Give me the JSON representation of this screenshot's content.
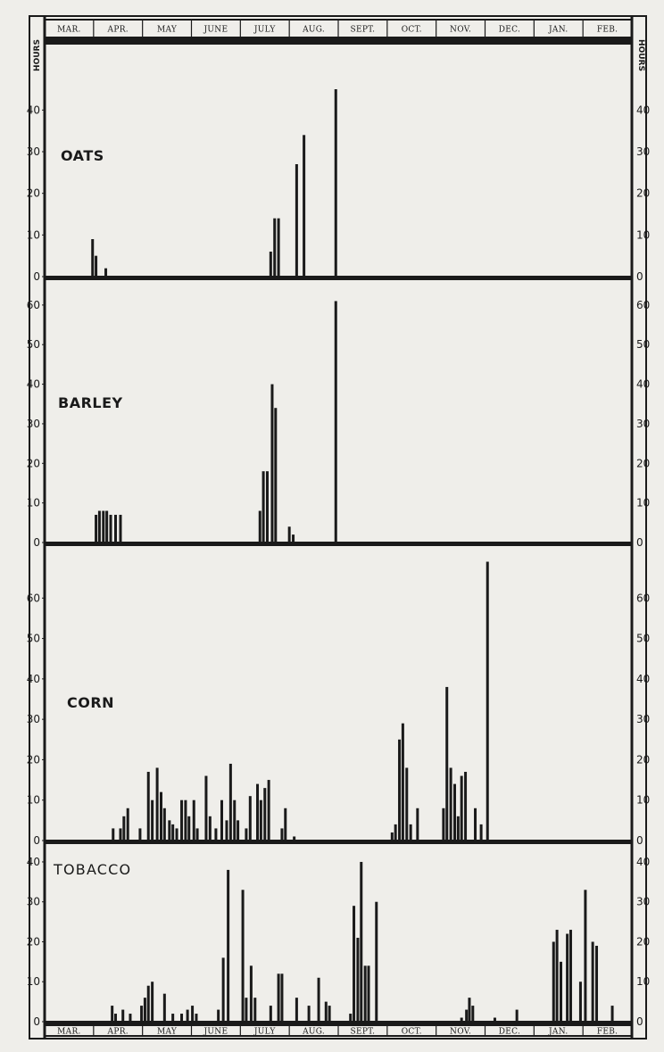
{
  "axis": {
    "y_title": "HOURS",
    "months": [
      "MAR.",
      "APR.",
      "MAY",
      "JUNE",
      "JULY",
      "AUG.",
      "SEPT.",
      "OCT.",
      "NOV.",
      "DEC.",
      "JAN.",
      "FEB."
    ]
  },
  "colors": {
    "ink": "#1a1a1a",
    "paper": "#efeeea"
  },
  "chart_data": [
    {
      "type": "bar",
      "title": "OATS",
      "ylim": [
        0,
        45
      ],
      "yticks": [
        0,
        10,
        20,
        30,
        40
      ],
      "x_unit": "months since start of March (0 = Mar 1, 12 = end of Feb)",
      "bars": [
        {
          "x": 0.98,
          "y": 9
        },
        {
          "x": 1.05,
          "y": 5
        },
        {
          "x": 1.25,
          "y": 2
        },
        {
          "x": 4.62,
          "y": 6
        },
        {
          "x": 4.7,
          "y": 14
        },
        {
          "x": 4.78,
          "y": 14
        },
        {
          "x": 5.15,
          "y": 27
        },
        {
          "x": 5.3,
          "y": 34
        },
        {
          "x": 5.95,
          "y": 45
        }
      ]
    },
    {
      "type": "bar",
      "title": "BARLEY",
      "ylim": [
        0,
        62
      ],
      "yticks": [
        0,
        10,
        20,
        30,
        40,
        50,
        60
      ],
      "x_unit": "months since start of March (0 = Mar 1, 12 = end of Feb)",
      "bars": [
        {
          "x": 1.05,
          "y": 7
        },
        {
          "x": 1.12,
          "y": 8
        },
        {
          "x": 1.2,
          "y": 8
        },
        {
          "x": 1.27,
          "y": 8
        },
        {
          "x": 1.35,
          "y": 7
        },
        {
          "x": 1.45,
          "y": 7
        },
        {
          "x": 1.55,
          "y": 7
        },
        {
          "x": 4.4,
          "y": 8
        },
        {
          "x": 4.47,
          "y": 18
        },
        {
          "x": 4.55,
          "y": 18
        },
        {
          "x": 4.65,
          "y": 40
        },
        {
          "x": 4.72,
          "y": 34
        },
        {
          "x": 5.0,
          "y": 4
        },
        {
          "x": 5.08,
          "y": 2
        },
        {
          "x": 5.95,
          "y": 61
        }
      ]
    },
    {
      "type": "bar",
      "title": "CORN",
      "ylim": [
        0,
        70
      ],
      "yticks": [
        0,
        10,
        20,
        30,
        40,
        50,
        60
      ],
      "x_unit": "months since start of March (0 = Mar 1, 12 = end of Feb)",
      "bars": [
        {
          "x": 1.4,
          "y": 3
        },
        {
          "x": 1.55,
          "y": 3
        },
        {
          "x": 1.62,
          "y": 6
        },
        {
          "x": 1.7,
          "y": 8
        },
        {
          "x": 1.95,
          "y": 3
        },
        {
          "x": 2.12,
          "y": 17
        },
        {
          "x": 2.2,
          "y": 10
        },
        {
          "x": 2.3,
          "y": 18
        },
        {
          "x": 2.38,
          "y": 12
        },
        {
          "x": 2.45,
          "y": 8
        },
        {
          "x": 2.55,
          "y": 5
        },
        {
          "x": 2.62,
          "y": 4
        },
        {
          "x": 2.7,
          "y": 3
        },
        {
          "x": 2.8,
          "y": 10
        },
        {
          "x": 2.88,
          "y": 10
        },
        {
          "x": 2.95,
          "y": 6
        },
        {
          "x": 3.05,
          "y": 10
        },
        {
          "x": 3.12,
          "y": 3
        },
        {
          "x": 3.3,
          "y": 16
        },
        {
          "x": 3.38,
          "y": 6
        },
        {
          "x": 3.5,
          "y": 3
        },
        {
          "x": 3.62,
          "y": 10
        },
        {
          "x": 3.72,
          "y": 5
        },
        {
          "x": 3.8,
          "y": 19
        },
        {
          "x": 3.88,
          "y": 10
        },
        {
          "x": 3.95,
          "y": 5
        },
        {
          "x": 4.12,
          "y": 3
        },
        {
          "x": 4.2,
          "y": 11
        },
        {
          "x": 4.35,
          "y": 14
        },
        {
          "x": 4.42,
          "y": 10
        },
        {
          "x": 4.5,
          "y": 13
        },
        {
          "x": 4.58,
          "y": 15
        },
        {
          "x": 4.85,
          "y": 3
        },
        {
          "x": 4.92,
          "y": 8
        },
        {
          "x": 5.1,
          "y": 1
        },
        {
          "x": 7.1,
          "y": 2
        },
        {
          "x": 7.17,
          "y": 4
        },
        {
          "x": 7.25,
          "y": 25
        },
        {
          "x": 7.32,
          "y": 29
        },
        {
          "x": 7.4,
          "y": 18
        },
        {
          "x": 7.48,
          "y": 4
        },
        {
          "x": 7.62,
          "y": 8
        },
        {
          "x": 8.15,
          "y": 8
        },
        {
          "x": 8.22,
          "y": 38
        },
        {
          "x": 8.3,
          "y": 18
        },
        {
          "x": 8.38,
          "y": 14
        },
        {
          "x": 8.45,
          "y": 6
        },
        {
          "x": 8.52,
          "y": 16
        },
        {
          "x": 8.6,
          "y": 17
        },
        {
          "x": 8.8,
          "y": 8
        },
        {
          "x": 8.92,
          "y": 4
        },
        {
          "x": 9.05,
          "y": 69
        }
      ]
    },
    {
      "type": "bar",
      "title": "TOBACCO",
      "ylim": [
        0,
        42
      ],
      "yticks": [
        0,
        10,
        20,
        30,
        40
      ],
      "x_unit": "months since start of March (0 = Mar 1, 12 = end of Feb)",
      "bars": [
        {
          "x": 1.38,
          "y": 4
        },
        {
          "x": 1.45,
          "y": 2
        },
        {
          "x": 1.6,
          "y": 3
        },
        {
          "x": 1.75,
          "y": 2
        },
        {
          "x": 1.98,
          "y": 4
        },
        {
          "x": 2.05,
          "y": 6
        },
        {
          "x": 2.12,
          "y": 9
        },
        {
          "x": 2.2,
          "y": 10
        },
        {
          "x": 2.45,
          "y": 7
        },
        {
          "x": 2.62,
          "y": 2
        },
        {
          "x": 2.8,
          "y": 2
        },
        {
          "x": 2.92,
          "y": 3
        },
        {
          "x": 3.02,
          "y": 4
        },
        {
          "x": 3.1,
          "y": 2
        },
        {
          "x": 3.55,
          "y": 3
        },
        {
          "x": 3.65,
          "y": 16
        },
        {
          "x": 3.75,
          "y": 38
        },
        {
          "x": 4.05,
          "y": 33
        },
        {
          "x": 4.12,
          "y": 6
        },
        {
          "x": 4.22,
          "y": 14
        },
        {
          "x": 4.3,
          "y": 6
        },
        {
          "x": 4.62,
          "y": 4
        },
        {
          "x": 4.78,
          "y": 12
        },
        {
          "x": 4.85,
          "y": 12
        },
        {
          "x": 5.15,
          "y": 6
        },
        {
          "x": 5.4,
          "y": 4
        },
        {
          "x": 5.6,
          "y": 11
        },
        {
          "x": 5.75,
          "y": 5
        },
        {
          "x": 5.82,
          "y": 4
        },
        {
          "x": 6.25,
          "y": 2
        },
        {
          "x": 6.32,
          "y": 29
        },
        {
          "x": 6.4,
          "y": 21
        },
        {
          "x": 6.47,
          "y": 40
        },
        {
          "x": 6.55,
          "y": 14
        },
        {
          "x": 6.62,
          "y": 14
        },
        {
          "x": 6.78,
          "y": 30
        },
        {
          "x": 8.52,
          "y": 1
        },
        {
          "x": 8.62,
          "y": 3
        },
        {
          "x": 8.68,
          "y": 6
        },
        {
          "x": 8.75,
          "y": 4
        },
        {
          "x": 9.2,
          "y": 1
        },
        {
          "x": 9.65,
          "y": 3
        },
        {
          "x": 10.4,
          "y": 20
        },
        {
          "x": 10.47,
          "y": 23
        },
        {
          "x": 10.55,
          "y": 15
        },
        {
          "x": 10.68,
          "y": 22
        },
        {
          "x": 10.75,
          "y": 23
        },
        {
          "x": 10.95,
          "y": 10
        },
        {
          "x": 11.05,
          "y": 33
        },
        {
          "x": 11.2,
          "y": 20
        },
        {
          "x": 11.28,
          "y": 19
        },
        {
          "x": 11.6,
          "y": 4
        }
      ]
    }
  ]
}
